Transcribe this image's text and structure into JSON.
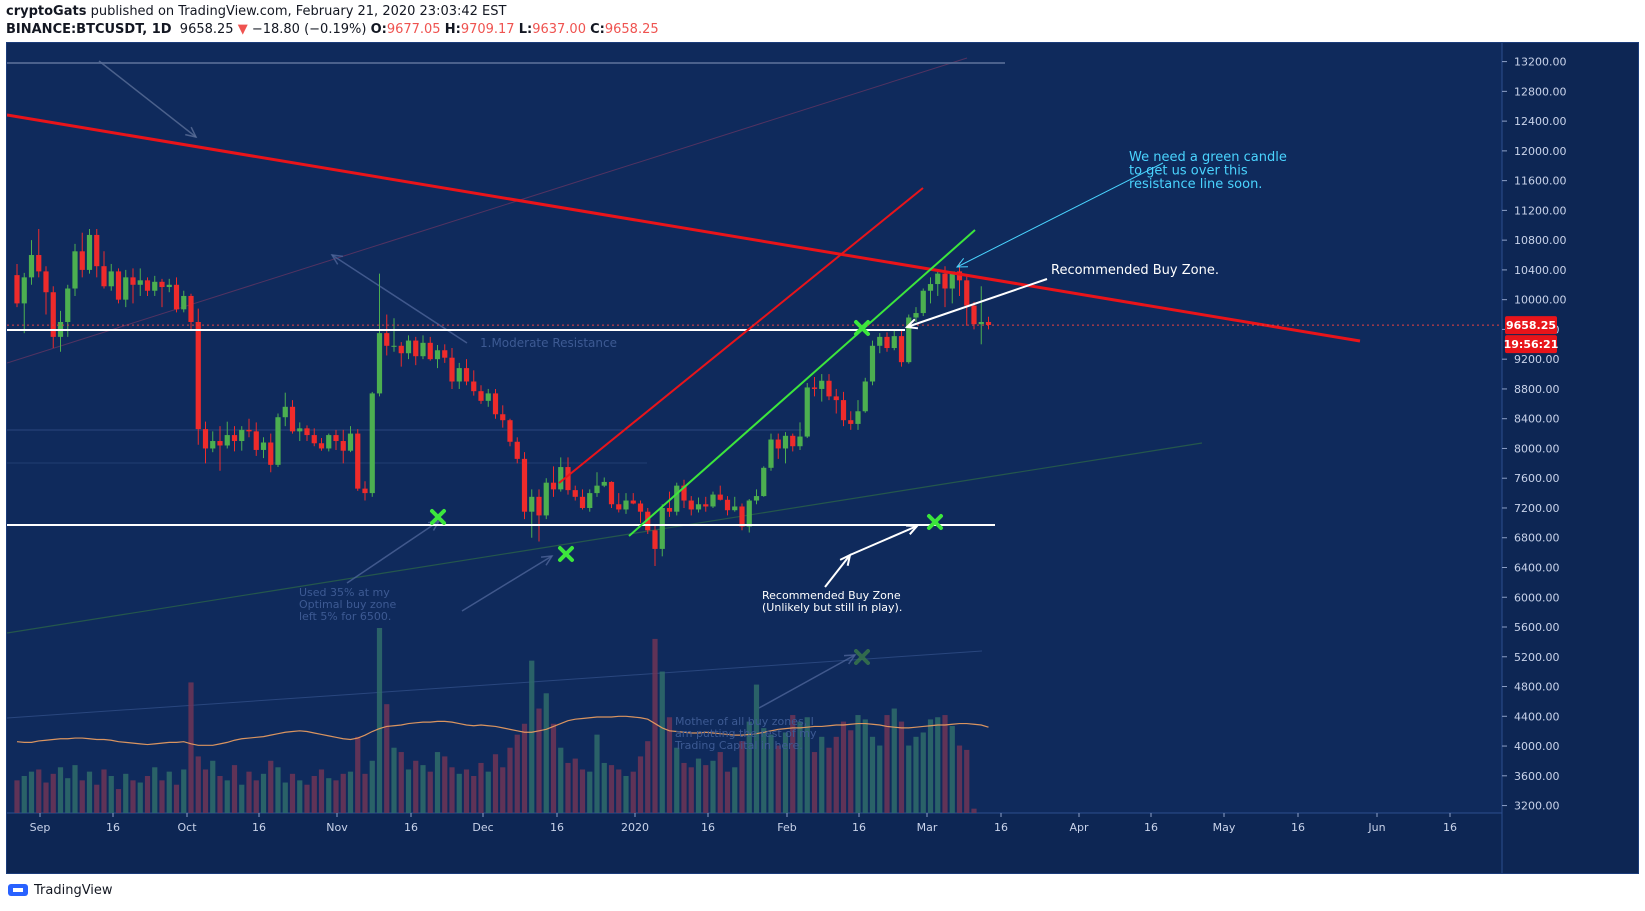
{
  "header": {
    "author": "cryptoGats",
    "published_text": "published on TradingView.com, February 21, 2020 23:03:42 EST",
    "symbol": "BINANCE:BTCUSDT, 1D",
    "last": "9658.25",
    "change_arrow": "▼",
    "change": "−18.80 (−0.19%)",
    "o_label": "O:",
    "o_value": "9677.05",
    "h_label": "H:",
    "h_value": "9709.17",
    "l_label": "L:",
    "l_value": "9637.00",
    "c_label": "C:",
    "c_value": "9658.25"
  },
  "colors": {
    "background": "#0f2a5c",
    "up": "#4caf50",
    "down": "#ef2b2b",
    "accent_red": "#e8141a",
    "accent_green": "#3ce63c",
    "annotation_cyan": "#4ad4ff",
    "ma_line": "#f0a060"
  },
  "footer": {
    "brand": "TradingView",
    "logo_icon": "tradingview-logo-icon"
  },
  "chart_data": {
    "type": "candlestick",
    "ylim": [
      3100,
      13450
    ],
    "y_ticks": [
      3200,
      3600,
      4000,
      4400,
      4800,
      5200,
      5600,
      6000,
      6400,
      6800,
      7200,
      7600,
      8000,
      8400,
      8800,
      9200,
      9600,
      10000,
      10400,
      10800,
      11200,
      11600,
      12000,
      12400,
      12800,
      13200
    ],
    "x_labels": [
      "Sep",
      "16",
      "Oct",
      "16",
      "Nov",
      "16",
      "Dec",
      "16",
      "2020",
      "16",
      "Feb",
      "16",
      "Mar",
      "16",
      "Apr",
      "16",
      "May",
      "16",
      "Jun",
      "16"
    ],
    "last_price_label": "9658.25",
    "countdown_label": "19:56:21",
    "annotations": {
      "moderate_resistance": "1.Moderate Resistance",
      "green_candle_note": [
        "We need a green candle",
        "to get us over this",
        "resistance line soon."
      ],
      "buy_zone_upper": "Recommended Buy Zone.",
      "buy_zone_lower": [
        "Recommended Buy Zone",
        "(Unlikely but still in play)."
      ],
      "used_35": [
        "Used 35% at my",
        "Optimal buy zone",
        "left 5% for 6500."
      ],
      "mother_zone": [
        "Mother of all buy zones, I",
        "am putting the rest of my",
        "Trading Capital in here."
      ]
    },
    "candles": [
      [
        10330,
        10480,
        9900,
        9950
      ],
      [
        9950,
        10360,
        9550,
        10300
      ],
      [
        10300,
        10800,
        10200,
        10600
      ],
      [
        10600,
        10950,
        10300,
        10380
      ],
      [
        10380,
        10450,
        9800,
        10100
      ],
      [
        10100,
        10180,
        9350,
        9500
      ],
      [
        9500,
        9850,
        9300,
        9700
      ],
      [
        9700,
        10200,
        9500,
        10150
      ],
      [
        10150,
        10750,
        10050,
        10650
      ],
      [
        10650,
        10900,
        10300,
        10400
      ],
      [
        10400,
        10950,
        10350,
        10870
      ],
      [
        10870,
        10950,
        10300,
        10450
      ],
      [
        10450,
        10650,
        10150,
        10180
      ],
      [
        10180,
        10480,
        10120,
        10380
      ],
      [
        10380,
        10420,
        9950,
        10000
      ],
      [
        10000,
        10400,
        9900,
        10300
      ],
      [
        10300,
        10420,
        9950,
        10200
      ],
      [
        10200,
        10420,
        10050,
        10260
      ],
      [
        10260,
        10300,
        10050,
        10120
      ],
      [
        10120,
        10320,
        10050,
        10240
      ],
      [
        10240,
        10280,
        9900,
        10170
      ],
      [
        10170,
        10280,
        10100,
        10200
      ],
      [
        10200,
        10300,
        9830,
        9870
      ],
      [
        9870,
        10120,
        9830,
        10050
      ],
      [
        10050,
        10080,
        9600,
        9700
      ],
      [
        9700,
        9880,
        8050,
        8260
      ],
      [
        8260,
        8360,
        7800,
        8000
      ],
      [
        8000,
        8230,
        7950,
        8100
      ],
      [
        8100,
        8300,
        7700,
        8040
      ],
      [
        8040,
        8360,
        8000,
        8180
      ],
      [
        8180,
        8300,
        7960,
        8100
      ],
      [
        8100,
        8300,
        7970,
        8250
      ],
      [
        8250,
        8400,
        8150,
        8230
      ],
      [
        8230,
        8350,
        7900,
        7980
      ],
      [
        7980,
        8150,
        7870,
        8080
      ],
      [
        8080,
        8200,
        7680,
        7780
      ],
      [
        7780,
        8470,
        7750,
        8420
      ],
      [
        8420,
        8750,
        8300,
        8560
      ],
      [
        8560,
        8650,
        8200,
        8230
      ],
      [
        8230,
        8350,
        8100,
        8270
      ],
      [
        8270,
        8310,
        8100,
        8180
      ],
      [
        8180,
        8270,
        8030,
        8070
      ],
      [
        8070,
        8140,
        7970,
        8000
      ],
      [
        8000,
        8200,
        7960,
        8180
      ],
      [
        8180,
        8250,
        7980,
        8100
      ],
      [
        8100,
        8250,
        7800,
        7970
      ],
      [
        7970,
        8300,
        7950,
        8200
      ],
      [
        8200,
        8260,
        7430,
        7460
      ],
      [
        7460,
        7560,
        7300,
        7400
      ],
      [
        7400,
        8760,
        7350,
        8740
      ],
      [
        8740,
        10350,
        8700,
        9550
      ],
      [
        9550,
        9800,
        9250,
        9380
      ],
      [
        9380,
        9750,
        9300,
        9380
      ],
      [
        9380,
        9430,
        9100,
        9280
      ],
      [
        9280,
        9520,
        9200,
        9450
      ],
      [
        9450,
        9500,
        9120,
        9240
      ],
      [
        9240,
        9520,
        9200,
        9420
      ],
      [
        9420,
        9500,
        9180,
        9200
      ],
      [
        9200,
        9390,
        9080,
        9320
      ],
      [
        9320,
        9400,
        9150,
        9220
      ],
      [
        9220,
        9350,
        8800,
        8900
      ],
      [
        8900,
        9150,
        8800,
        9080
      ],
      [
        9080,
        9200,
        8850,
        8900
      ],
      [
        8900,
        9050,
        8710,
        8770
      ],
      [
        8770,
        8850,
        8600,
        8640
      ],
      [
        8640,
        8800,
        8560,
        8740
      ],
      [
        8740,
        8800,
        8400,
        8460
      ],
      [
        8460,
        8580,
        8280,
        8380
      ],
      [
        8380,
        8400,
        8030,
        8090
      ],
      [
        8090,
        8150,
        7800,
        7860
      ],
      [
        7860,
        7950,
        7050,
        7150
      ],
      [
        7150,
        7450,
        6800,
        7350
      ],
      [
        7350,
        7450,
        6750,
        7100
      ],
      [
        7100,
        7600,
        7050,
        7540
      ],
      [
        7540,
        7760,
        7350,
        7450
      ],
      [
        7450,
        7880,
        7420,
        7750
      ],
      [
        7750,
        7880,
        7380,
        7440
      ],
      [
        7440,
        7500,
        7300,
        7350
      ],
      [
        7350,
        7450,
        7180,
        7200
      ],
      [
        7200,
        7450,
        7150,
        7400
      ],
      [
        7400,
        7680,
        7350,
        7500
      ],
      [
        7500,
        7610,
        7480,
        7550
      ],
      [
        7550,
        7560,
        7200,
        7250
      ],
      [
        7250,
        7400,
        7140,
        7180
      ],
      [
        7180,
        7400,
        7120,
        7300
      ],
      [
        7300,
        7400,
        7250,
        7260
      ],
      [
        7260,
        7300,
        7000,
        7150
      ],
      [
        7150,
        7200,
        6850,
        6900
      ],
      [
        6900,
        6960,
        6420,
        6650
      ],
      [
        6650,
        7250,
        6550,
        7200
      ],
      [
        7200,
        7420,
        7080,
        7150
      ],
      [
        7150,
        7540,
        7100,
        7500
      ],
      [
        7500,
        7580,
        7200,
        7300
      ],
      [
        7300,
        7360,
        7100,
        7180
      ],
      [
        7180,
        7340,
        7140,
        7250
      ],
      [
        7250,
        7350,
        7150,
        7220
      ],
      [
        7220,
        7420,
        7200,
        7380
      ],
      [
        7380,
        7500,
        7300,
        7310
      ],
      [
        7310,
        7360,
        7100,
        7170
      ],
      [
        7170,
        7350,
        7150,
        7220
      ],
      [
        7220,
        7260,
        6900,
        6950
      ],
      [
        6950,
        7320,
        6870,
        7300
      ],
      [
        7300,
        7450,
        7250,
        7360
      ],
      [
        7360,
        7760,
        7350,
        7740
      ],
      [
        7740,
        8200,
        7700,
        8120
      ],
      [
        8120,
        8200,
        7860,
        8000
      ],
      [
        8000,
        8220,
        7800,
        8170
      ],
      [
        8170,
        8200,
        7960,
        8030
      ],
      [
        8030,
        8350,
        7980,
        8160
      ],
      [
        8160,
        8880,
        8140,
        8820
      ],
      [
        8820,
        8960,
        8700,
        8800
      ],
      [
        8800,
        9000,
        8630,
        8910
      ],
      [
        8910,
        9000,
        8650,
        8700
      ],
      [
        8700,
        8800,
        8470,
        8650
      ],
      [
        8650,
        8760,
        8300,
        8380
      ],
      [
        8380,
        8500,
        8250,
        8330
      ],
      [
        8330,
        8650,
        8250,
        8500
      ],
      [
        8500,
        8950,
        8480,
        8900
      ],
      [
        8900,
        9450,
        8850,
        9380
      ],
      [
        9380,
        9550,
        9280,
        9500
      ],
      [
        9500,
        9560,
        9300,
        9350
      ],
      [
        9350,
        9600,
        9320,
        9510
      ],
      [
        9510,
        9580,
        9100,
        9160
      ],
      [
        9160,
        9800,
        9140,
        9760
      ],
      [
        9760,
        9900,
        9700,
        9820
      ],
      [
        9820,
        10150,
        9780,
        10120
      ],
      [
        10120,
        10300,
        9950,
        10210
      ],
      [
        10210,
        10400,
        10050,
        10350
      ],
      [
        10350,
        10450,
        9900,
        10150
      ],
      [
        10150,
        10280,
        9950,
        10380
      ],
      [
        10380,
        10500,
        10050,
        10260
      ],
      [
        10260,
        10310,
        9650,
        9920
      ],
      [
        9920,
        9970,
        9600,
        9670
      ],
      [
        9670,
        10180,
        9400,
        9700
      ],
      [
        9700,
        9770,
        9600,
        9660
      ]
    ],
    "volume_scale": "relative",
    "volumes": [
      30,
      34,
      38,
      40,
      28,
      36,
      42,
      32,
      44,
      30,
      38,
      26,
      40,
      34,
      22,
      36,
      30,
      28,
      34,
      42,
      30,
      38,
      26,
      40,
      120,
      52,
      40,
      48,
      34,
      30,
      44,
      26,
      38,
      30,
      36,
      48,
      42,
      28,
      36,
      30,
      26,
      34,
      40,
      32,
      30,
      36,
      38,
      70,
      36,
      48,
      170,
      100,
      60,
      56,
      40,
      48,
      44,
      38,
      56,
      52,
      42,
      36,
      40,
      34,
      46,
      38,
      54,
      42,
      60,
      72,
      82,
      140,
      96,
      110,
      82,
      60,
      46,
      50,
      40,
      38,
      72,
      46,
      44,
      40,
      34,
      38,
      52,
      66,
      160,
      130,
      88,
      60,
      46,
      42,
      50,
      44,
      48,
      56,
      38,
      42,
      66,
      84,
      118,
      78,
      72,
      62,
      74,
      90,
      84,
      88,
      56,
      70,
      60,
      70,
      84,
      76,
      90,
      86,
      70,
      62,
      90,
      96,
      84,
      62,
      70,
      74,
      86,
      88,
      90,
      80,
      62,
      58,
      4
    ],
    "ma": [
      3885,
      3880,
      3880,
      3890,
      3895,
      3900,
      3905,
      3905,
      3910,
      3910,
      3905,
      3900,
      3900,
      3895,
      3885,
      3880,
      3875,
      3870,
      3865,
      3870,
      3875,
      3880,
      3880,
      3885,
      3870,
      3860,
      3860,
      3860,
      3870,
      3880,
      3895,
      3905,
      3910,
      3915,
      3920,
      3930,
      3940,
      3950,
      3955,
      3960,
      3955,
      3945,
      3935,
      3925,
      3915,
      3905,
      3900,
      3910,
      3930,
      3955,
      3975,
      3990,
      3995,
      4000,
      4010,
      4015,
      4020,
      4020,
      4025,
      4025,
      4020,
      4010,
      4000,
      3995,
      4000,
      3995,
      3990,
      3980,
      3970,
      3960,
      3950,
      3950,
      3960,
      3970,
      3990,
      4010,
      4030,
      4040,
      4045,
      4050,
      4055,
      4055,
      4055,
      4060,
      4060,
      4055,
      4050,
      4040,
      4010,
      3980,
      3960,
      3955,
      3950,
      3945,
      3945,
      3950,
      3945,
      3940,
      3935,
      3930,
      3930,
      3935,
      3940,
      3950,
      3960,
      3970,
      3975,
      3980,
      3980,
      3985,
      3990,
      3990,
      3995,
      4000,
      4000,
      4005,
      4010,
      4010,
      4005,
      4000,
      3990,
      3985,
      3980,
      3980,
      3985,
      3990,
      3995,
      4000,
      4000,
      4005,
      4010,
      4010,
      4005,
      4000,
      3985
    ]
  }
}
